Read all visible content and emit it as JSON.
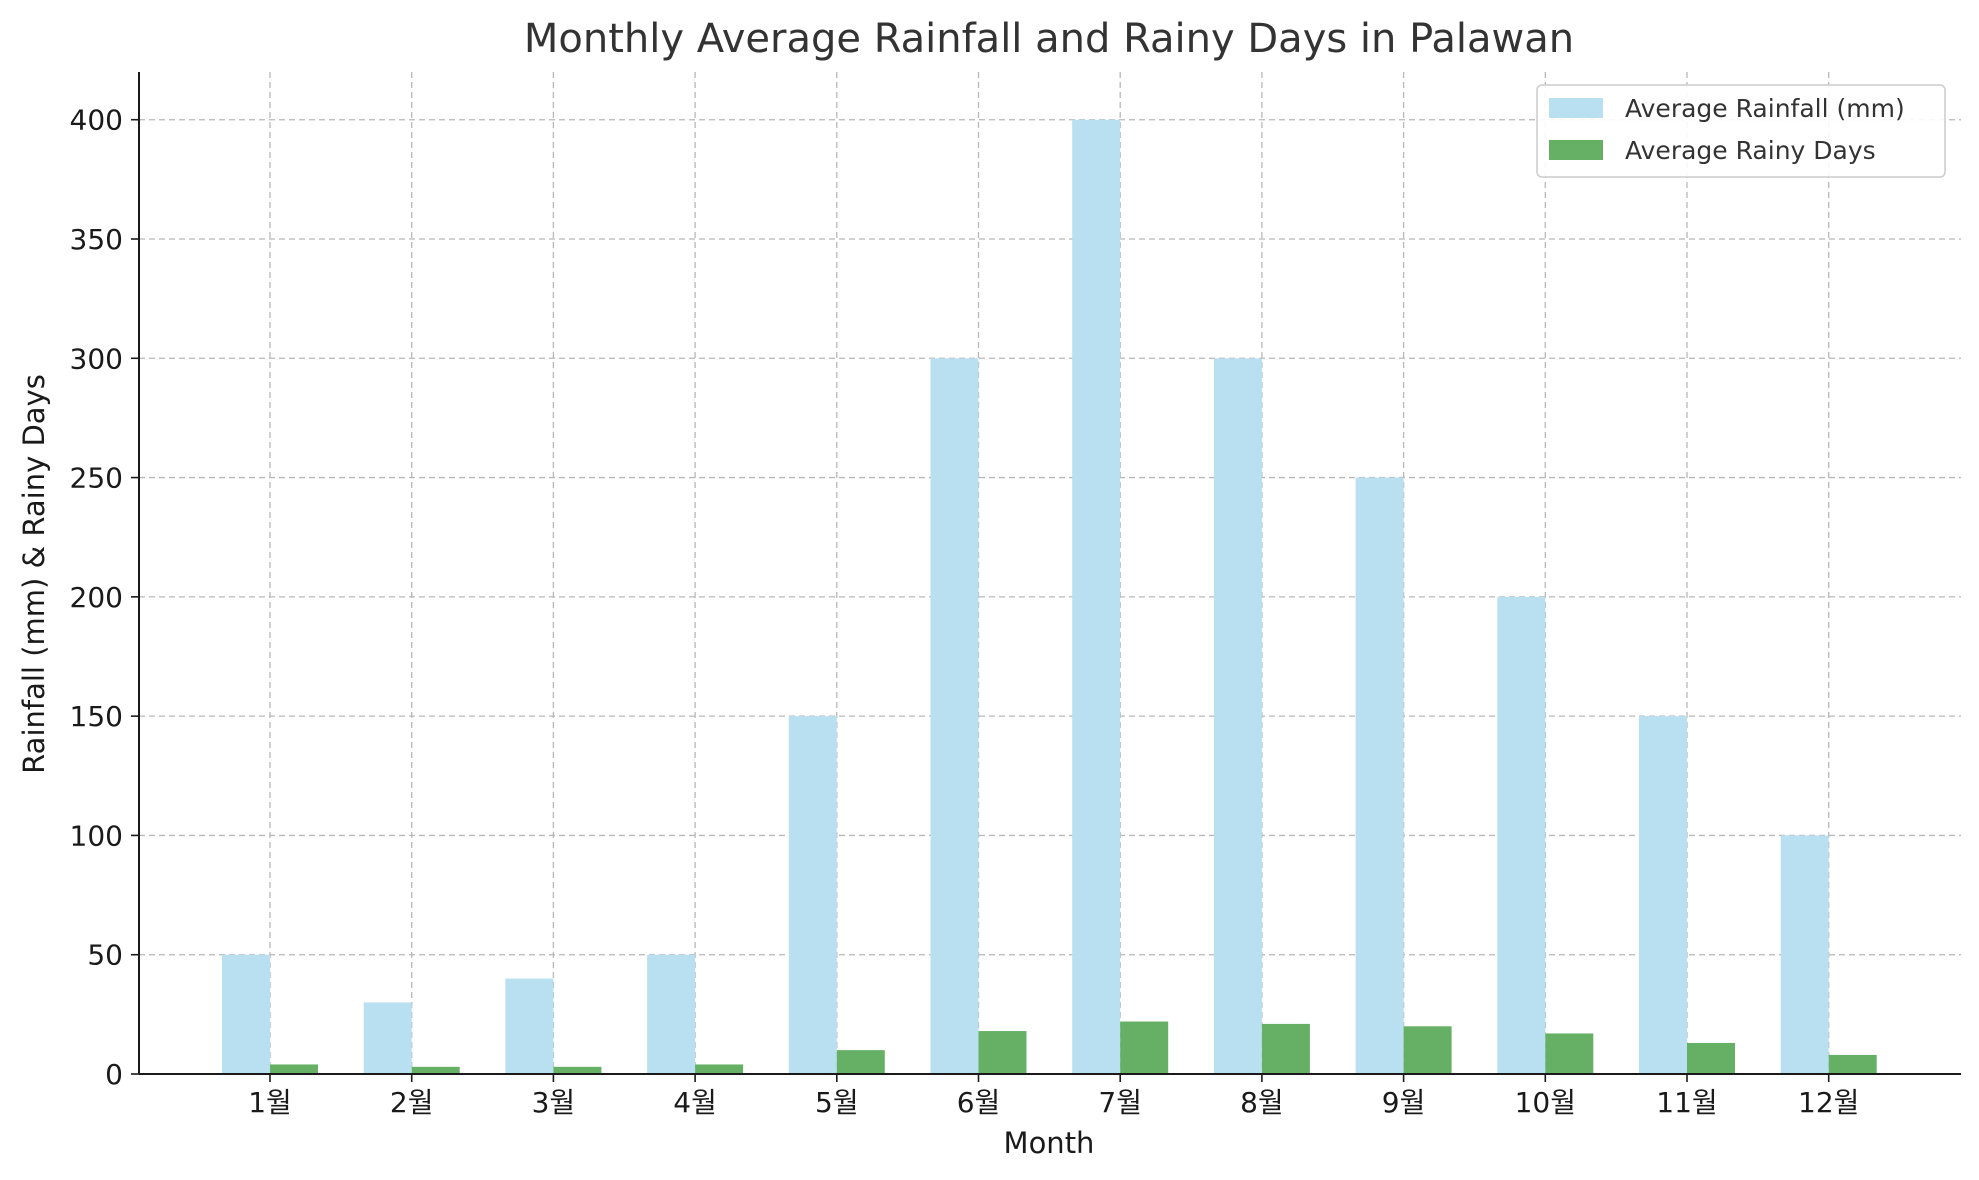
{
  "chart_data": {
    "type": "bar",
    "title": "Monthly Average Rainfall and Rainy Days in Palawan",
    "xlabel": "Month",
    "ylabel": "Rainfall (mm) & Rainy Days",
    "categories": [
      "1월",
      "2월",
      "3월",
      "4월",
      "5월",
      "6월",
      "7월",
      "8월",
      "9월",
      "10월",
      "11월",
      "12월"
    ],
    "series": [
      {
        "name": "Average Rainfall (mm)",
        "color": "#b9e0f1",
        "values": [
          50,
          30,
          40,
          50,
          150,
          300,
          400,
          300,
          250,
          200,
          150,
          100
        ]
      },
      {
        "name": "Average Rainy Days",
        "color": "#66b066",
        "values": [
          4,
          3,
          3,
          4,
          10,
          18,
          22,
          21,
          20,
          17,
          13,
          8
        ]
      }
    ],
    "ylim": [
      0,
      420
    ],
    "yticks": [
      0,
      50,
      100,
      150,
      200,
      250,
      300,
      350,
      400
    ],
    "grid": true,
    "legend_position": "top-right"
  }
}
